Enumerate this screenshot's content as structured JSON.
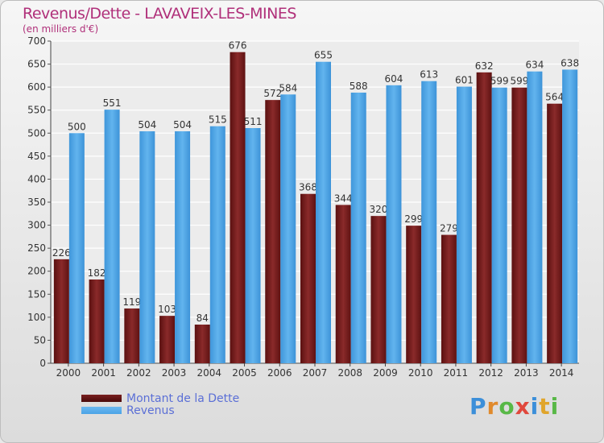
{
  "title": "Revenus/Dette - LAVAVEIX-LES-MINES",
  "subtitle": "(en milliers d'€)",
  "logo_text": "Proxiti",
  "logo_letters": [
    {
      "ch": "P",
      "color": "#3c8fd9"
    },
    {
      "ch": "r",
      "color": "#e08a2c"
    },
    {
      "ch": "o",
      "color": "#58b847"
    },
    {
      "ch": "x",
      "color": "#e0473c"
    },
    {
      "ch": "i",
      "color": "#3c8fd9"
    },
    {
      "ch": "t",
      "color": "#e0a52c"
    },
    {
      "ch": "i",
      "color": "#58b847"
    }
  ],
  "chart_data": {
    "type": "bar",
    "categories": [
      "2000",
      "2001",
      "2002",
      "2003",
      "2004",
      "2005",
      "2006",
      "2007",
      "2008",
      "2009",
      "2010",
      "2011",
      "2012",
      "2013",
      "2014"
    ],
    "series": [
      {
        "name": "Montant de la Dette",
        "color": "#7a1f1f",
        "values": [
          226,
          182,
          119,
          103,
          84,
          676,
          572,
          368,
          344,
          320,
          299,
          279,
          632,
          599,
          564
        ]
      },
      {
        "name": "Revenus",
        "color": "#4aa3e6",
        "values": [
          500,
          551,
          504,
          504,
          515,
          511,
          584,
          655,
          588,
          604,
          613,
          601,
          599,
          634,
          638
        ]
      }
    ],
    "ylim": [
      0,
      700
    ],
    "yticks": [
      0,
      50,
      100,
      150,
      200,
      250,
      300,
      350,
      400,
      450,
      500,
      550,
      600,
      650,
      700
    ],
    "grid": true,
    "legend_position": "bottom-left"
  }
}
